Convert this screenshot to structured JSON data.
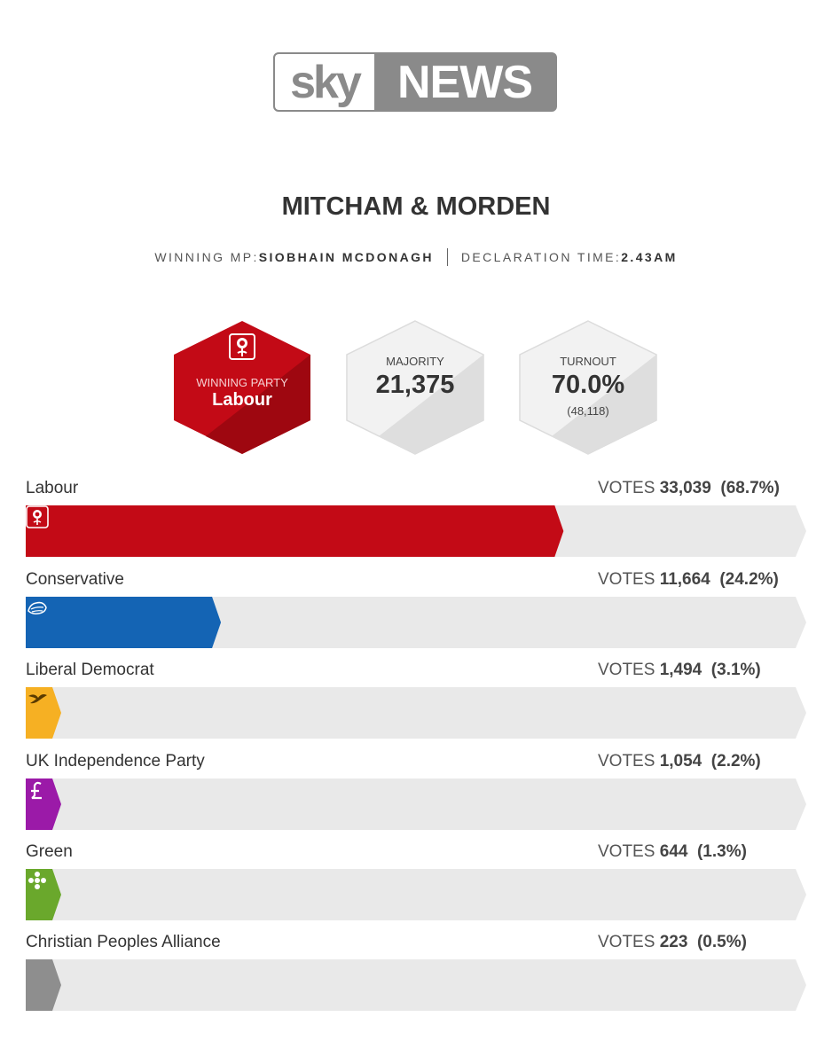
{
  "brand": {
    "sky": "sky",
    "news": "NEWS"
  },
  "header": {
    "constituency": "MITCHAM & MORDEN",
    "winning_mp_label": "WINNING MP:",
    "winning_mp": "SIOBHAIN MCDONAGH",
    "declaration_label": "DECLARATION TIME:",
    "declaration_time": "2.43AM"
  },
  "summary": {
    "winning_party_label": "WINNING PARTY",
    "winning_party": "Labour",
    "majority_label": "MAJORITY",
    "majority": "21,375",
    "turnout_label": "TURNOUT",
    "turnout": "70.0%",
    "turnout_count": "(48,118)"
  },
  "colors": {
    "labour": "#c30a16",
    "labour_dark": "#9e0710",
    "conservative": "#1464b4",
    "libdem": "#f6b023",
    "ukip": "#9b1aa8",
    "green": "#6aa82c",
    "cpa": "#8e8e8e",
    "track": "#e9e9e9"
  },
  "chart_data": {
    "type": "bar",
    "votes_label": "VOTES",
    "categories": [
      "Labour",
      "Conservative",
      "Liberal Democrat",
      "UK Independence Party",
      "Green",
      "Christian Peoples Alliance"
    ],
    "series": [
      {
        "values": [
          33039,
          11664,
          1494,
          1054,
          644,
          223
        ]
      }
    ],
    "rows": [
      {
        "party": "Labour",
        "votes": "33,039",
        "pct_label": "(68.7%)",
        "pct": 68.7,
        "color": "#c30a16",
        "icon": "labour-rose-icon"
      },
      {
        "party": "Conservative",
        "votes": "11,664",
        "pct_label": "(24.2%)",
        "pct": 24.2,
        "color": "#1464b4",
        "icon": "conservative-tree-icon"
      },
      {
        "party": "Liberal Democrat",
        "votes": "1,494",
        "pct_label": "(3.1%)",
        "pct": 3.1,
        "color": "#f6b023",
        "icon": "libdem-bird-icon"
      },
      {
        "party": "UK Independence Party",
        "votes": "1,054",
        "pct_label": "(2.2%)",
        "pct": 2.2,
        "color": "#9b1aa8",
        "icon": "ukip-pound-icon"
      },
      {
        "party": "Green",
        "votes": "644",
        "pct_label": "(1.3%)",
        "pct": 1.3,
        "color": "#6aa82c",
        "icon": "green-flower-icon"
      },
      {
        "party": "Christian Peoples Alliance",
        "votes": "223",
        "pct_label": "(0.5%)",
        "pct": 0.5,
        "color": "#8e8e8e",
        "icon": ""
      }
    ],
    "xlim": [
      0,
      100
    ]
  }
}
